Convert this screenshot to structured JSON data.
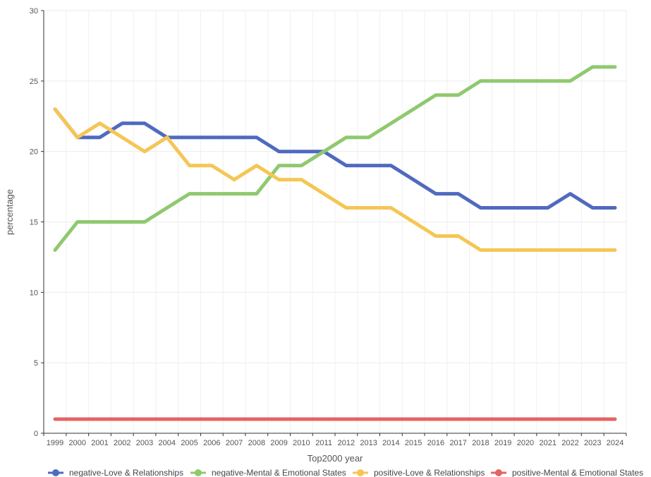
{
  "chart_data": {
    "type": "line",
    "title": "",
    "xlabel": "Top2000  year",
    "ylabel": "percentage",
    "ylim": [
      0,
      30
    ],
    "yticks": [
      0,
      5,
      10,
      15,
      20,
      25,
      30
    ],
    "grid": true,
    "legend_position": "bottom",
    "x": [
      "1999",
      "2000",
      "2001",
      "2002",
      "2003",
      "2004",
      "2005",
      "2006",
      "2007",
      "2008",
      "2009",
      "2010",
      "2011",
      "2012",
      "2013",
      "2014",
      "2015",
      "2016",
      "2017",
      "2018",
      "2019",
      "2020",
      "2021",
      "2022",
      "2023",
      "2024"
    ],
    "series": [
      {
        "name": "negative-Love & Relationships",
        "color": "#4f6abf",
        "values": [
          23,
          21,
          21,
          22,
          22,
          21,
          21,
          21,
          21,
          21,
          20,
          20,
          20,
          19,
          19,
          19,
          18,
          17,
          17,
          16,
          16,
          16,
          16,
          17,
          16,
          16
        ]
      },
      {
        "name": "negative-Mental & Emotional States",
        "color": "#8fc96e",
        "values": [
          13,
          15,
          15,
          15,
          15,
          16,
          17,
          17,
          17,
          17,
          19,
          19,
          20,
          21,
          21,
          22,
          23,
          24,
          24,
          25,
          25,
          25,
          25,
          25,
          26,
          26
        ]
      },
      {
        "name": "positive-Love & Relationships",
        "color": "#f5c655",
        "values": [
          23,
          21,
          22,
          21,
          20,
          21,
          19,
          19,
          18,
          19,
          18,
          18,
          17,
          16,
          16,
          16,
          15,
          14,
          14,
          13,
          13,
          13,
          13,
          13,
          13,
          13
        ]
      },
      {
        "name": "positive-Mental & Emotional States",
        "color": "#e36464",
        "values": [
          1,
          1,
          1,
          1,
          1,
          1,
          1,
          1,
          1,
          1,
          1,
          1,
          1,
          1,
          1,
          1,
          1,
          1,
          1,
          1,
          1,
          1,
          1,
          1,
          1,
          1
        ]
      }
    ]
  }
}
